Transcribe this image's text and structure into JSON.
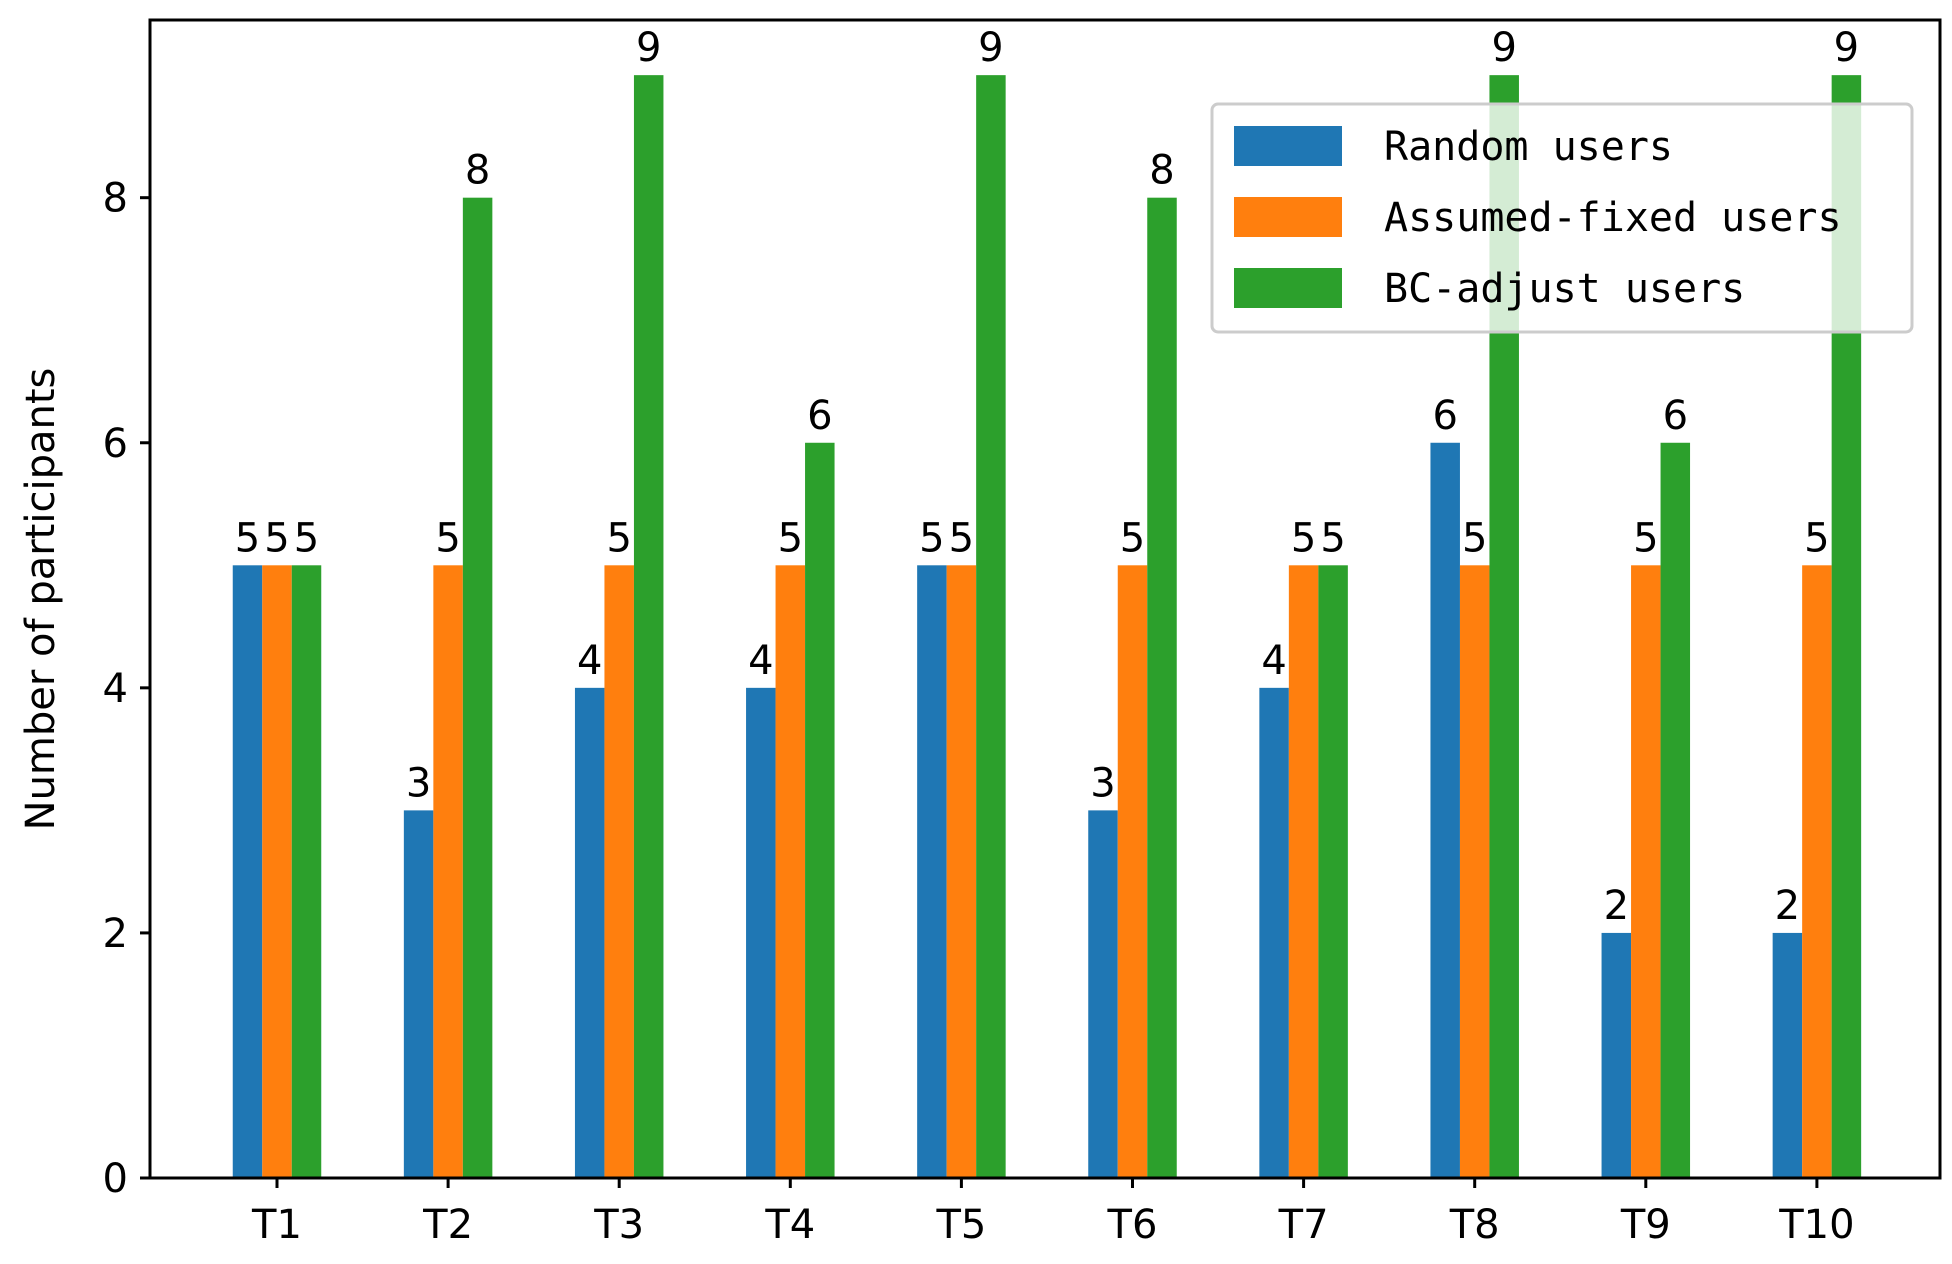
{
  "chart_data": {
    "type": "bar",
    "title": "",
    "xlabel": "",
    "ylabel": "Number of participants",
    "ylim": [
      0,
      9.45
    ],
    "yticks": [
      0,
      2,
      4,
      6,
      8
    ],
    "categories": [
      "T1",
      "T2",
      "T3",
      "T4",
      "T5",
      "T6",
      "T7",
      "T8",
      "T9",
      "T10"
    ],
    "series": [
      {
        "name": "Random users",
        "color": "#1f77b4",
        "values": [
          5,
          3,
          4,
          4,
          5,
          3,
          4,
          6,
          2,
          2
        ]
      },
      {
        "name": "Assumed-fixed users",
        "color": "#ff7f0e",
        "values": [
          5,
          5,
          5,
          5,
          5,
          5,
          5,
          5,
          5,
          5
        ]
      },
      {
        "name": "BC-adjust users",
        "color": "#2ca02c",
        "values": [
          5,
          8,
          9,
          6,
          9,
          8,
          5,
          9,
          6,
          9
        ]
      }
    ],
    "legend_position": "top-right",
    "grid": false
  }
}
